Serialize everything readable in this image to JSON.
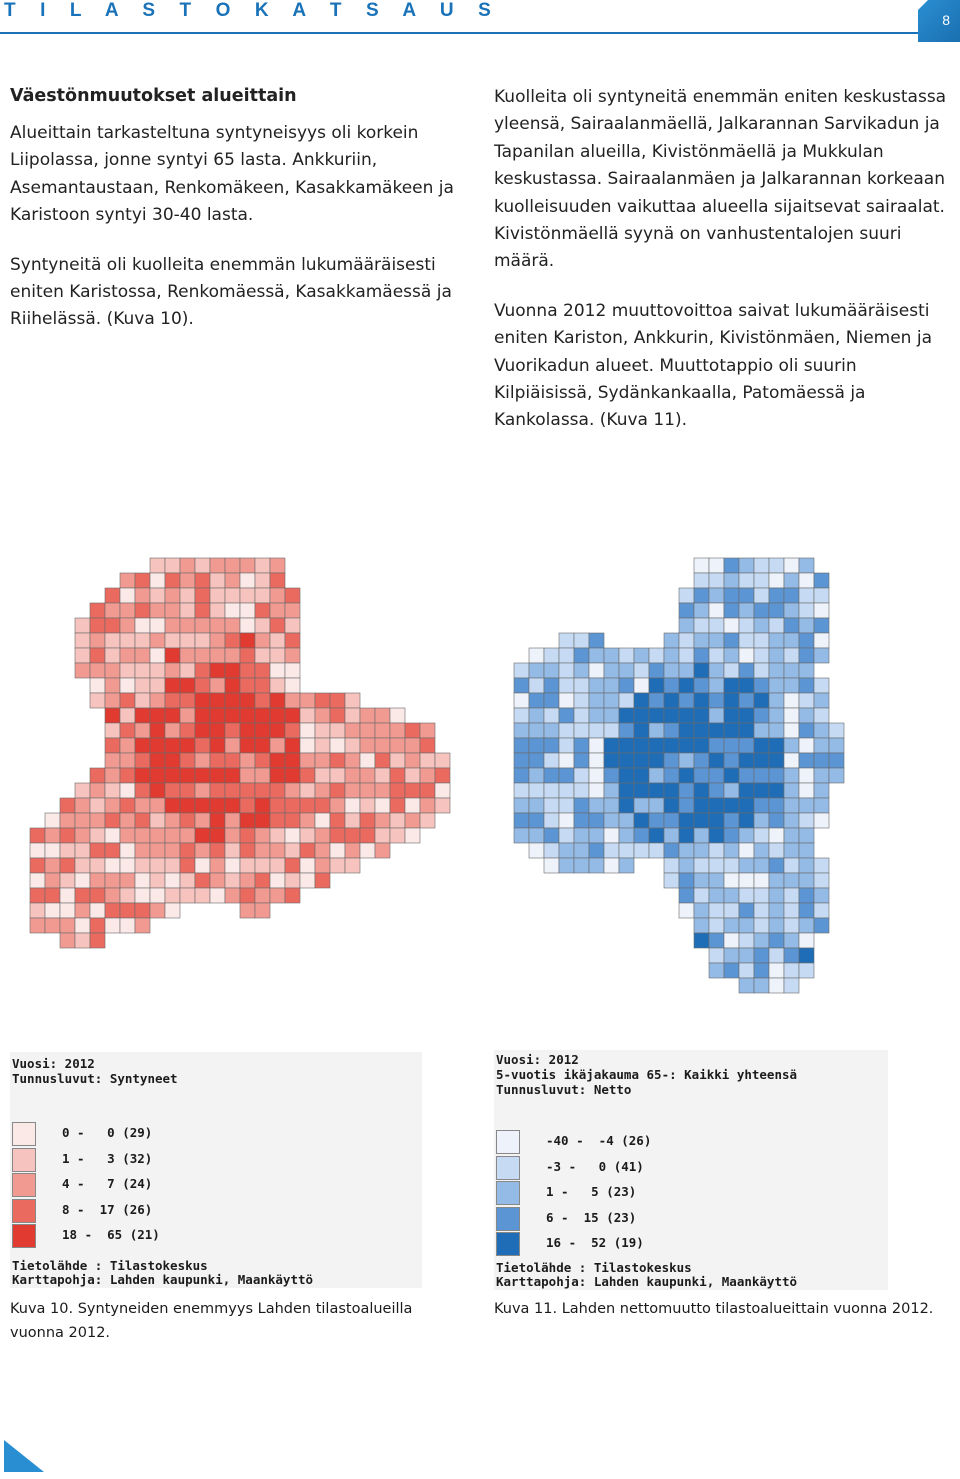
{
  "header": {
    "brand": "T I L A S T O K A T S A U S",
    "page_number": "8"
  },
  "col1": {
    "heading": "Väestönmuutokset alueittain",
    "p1": "Alueittain tarkasteltuna syntyneisyys oli korkein Liipolassa, jonne syntyi 65 lasta. Ankkuriin, Asemantaustaan, Renkomäkeen, Kasakkamäkeen ja Karistoon syntyi 30-40 lasta.",
    "p2": "Syntyneitä oli kuolleita enemmän lukumääräisesti eniten Karistossa, Renkomäessä, Kasakkamäessä ja Riihelässä. (Kuva 10)."
  },
  "col2": {
    "p1": "Kuolleita oli syntyneitä enemmän eniten keskustassa yleensä, Sairaalanmäellä, Jalkarannan Sarvikadun ja Tapanilan alueilla, Kivistönmäellä ja Mukkulan keskustassa. Sairaalanmäen ja Jalkarannan korkeaan kuolleisuuden vaikuttaa alueella sijaitsevat sairaalat. Kivistönmäellä syynä on vanhustentalojen suuri määrä.",
    "p2": "Vuonna 2012 muuttovoittoa saivat lukumääräisesti eniten Kariston, Ankkurin, Kivistönmäen, Niemen ja Vuorikadun alueet. Muuttotappio oli suurin Kilpiäisissä, Sydänkankaalla, Patomäessä ja Kankolassa. (Kuva 11)."
  },
  "legend1": {
    "line1": "Vuosi: 2012",
    "line2": "Tunnusluvut: Syntyneet",
    "rows": [
      {
        "text": "0 -   0 (29)",
        "color": "#fbe9e8"
      },
      {
        "text": "1 -   3 (32)",
        "color": "#f6c3be"
      },
      {
        "text": "4 -   7 (24)",
        "color": "#f19a92"
      },
      {
        "text": "8 -  17 (26)",
        "color": "#ea6a5f"
      },
      {
        "text": "18 -  65 (21)",
        "color": "#e03a31"
      }
    ],
    "source1": "Tietolähde : Tilastokeskus",
    "source2": "Karttapohja: Lahden kaupunki, Maankäyttö"
  },
  "legend2": {
    "line1": "Vuosi: 2012",
    "line2": "5-vuotis ikäjakauma 65-: Kaikki yhteensä",
    "line3": "Tunnusluvut: Netto",
    "rows": [
      {
        "text": "-40 -  -4 (26)",
        "color": "#eef3fb"
      },
      {
        "text": "-3 -   0 (41)",
        "color": "#c6dbf3"
      },
      {
        "text": "1 -   5 (23)",
        "color": "#93bbe6"
      },
      {
        "text": "6 -  15 (23)",
        "color": "#5b95d3"
      },
      {
        "text": "16 -  52 (19)",
        "color": "#1f6db7"
      }
    ],
    "source1": "Tietolähde : Tilastokeskus",
    "source2": "Karttapohja: Lahden kaupunki, Maankäyttö"
  },
  "captions": {
    "fig10": "Kuva 10. Syntyneiden enemmyys Lahden tilastoalueilla vuonna 2012.",
    "fig11": "Kuva 11. Lahden nettomuutto tilastoalueittain vuonna 2012."
  },
  "palette": {
    "red": [
      "#fbe9e8",
      "#f6c3be",
      "#f19a92",
      "#ea6a5f",
      "#e03a31"
    ],
    "blue": [
      "#eef3fb",
      "#c6dbf3",
      "#93bbe6",
      "#5b95d3",
      "#1f6db7"
    ]
  }
}
